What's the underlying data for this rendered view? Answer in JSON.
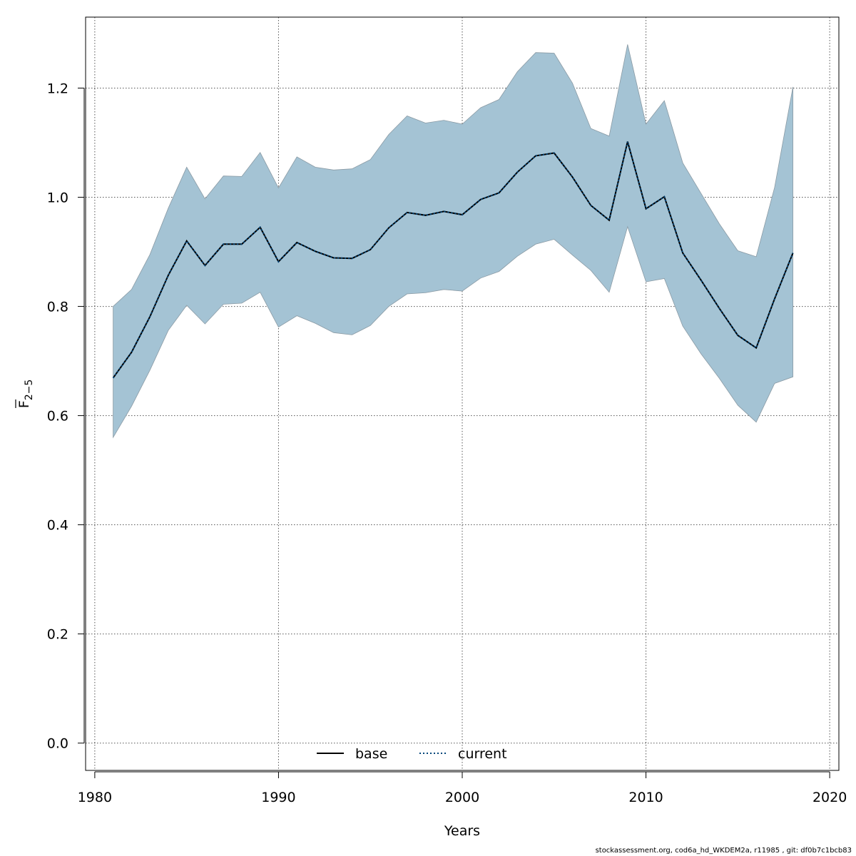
{
  "chart_data": {
    "type": "line",
    "title": "",
    "xlabel": "Years",
    "ylabel_main": "F",
    "ylabel_sub": "2−5",
    "xlim": [
      1979.5,
      2020.5
    ],
    "ylim": [
      -0.05,
      1.33
    ],
    "xticks": [
      1980,
      1990,
      2000,
      2010,
      2020
    ],
    "yticks": [
      0.0,
      0.2,
      0.4,
      0.6,
      0.8,
      1.0,
      1.2
    ],
    "xtick_labels": [
      "1980",
      "1990",
      "2000",
      "2010",
      "2020"
    ],
    "ytick_labels": [
      "0.0",
      "0.2",
      "0.4",
      "0.6",
      "0.8",
      "1.0",
      "1.2"
    ],
    "grid": true,
    "legend_position": "bottom-center",
    "band_color": "#a4c3d4",
    "band_edge_color": "#8a9aa4",
    "x": [
      1981,
      1982,
      1983,
      1984,
      1985,
      1986,
      1987,
      1988,
      1989,
      1990,
      1991,
      1992,
      1993,
      1994,
      1995,
      1996,
      1997,
      1998,
      1999,
      2000,
      2001,
      2002,
      2003,
      2004,
      2005,
      2006,
      2007,
      2008,
      2009,
      2010,
      2011,
      2012,
      2013,
      2014,
      2015,
      2016,
      2017,
      2018
    ],
    "series": [
      {
        "name": "base",
        "style": "solid",
        "color": "#000000",
        "values": [
          0.669,
          0.716,
          0.781,
          0.857,
          0.92,
          0.875,
          0.914,
          0.914,
          0.945,
          0.882,
          0.917,
          0.901,
          0.889,
          0.888,
          0.904,
          0.944,
          0.972,
          0.967,
          0.974,
          0.968,
          0.996,
          1.008,
          1.046,
          1.076,
          1.081,
          1.037,
          0.985,
          0.958,
          1.102,
          0.979,
          1.001,
          0.898,
          0.848,
          0.796,
          0.747,
          0.724,
          0.814,
          0.898
        ]
      },
      {
        "name": "current",
        "style": "dotted",
        "color": "#00467a",
        "values": [
          0.669,
          0.716,
          0.781,
          0.857,
          0.92,
          0.875,
          0.914,
          0.914,
          0.945,
          0.882,
          0.917,
          0.901,
          0.889,
          0.888,
          0.904,
          0.944,
          0.972,
          0.967,
          0.974,
          0.968,
          0.996,
          1.008,
          1.046,
          1.076,
          1.081,
          1.037,
          0.985,
          0.958,
          1.102,
          0.979,
          1.001,
          0.898,
          0.848,
          0.796,
          0.747,
          0.724,
          0.814,
          0.898
        ]
      }
    ],
    "band_lower": [
      0.56,
      0.617,
      0.683,
      0.756,
      0.802,
      0.768,
      0.804,
      0.806,
      0.826,
      0.762,
      0.783,
      0.769,
      0.752,
      0.748,
      0.765,
      0.8,
      0.823,
      0.825,
      0.831,
      0.828,
      0.852,
      0.864,
      0.892,
      0.914,
      0.923,
      0.894,
      0.866,
      0.826,
      0.946,
      0.845,
      0.851,
      0.764,
      0.713,
      0.668,
      0.619,
      0.588,
      0.659,
      0.671
    ],
    "band_upper": [
      0.8,
      0.831,
      0.895,
      0.98,
      1.055,
      0.997,
      1.039,
      1.038,
      1.082,
      1.017,
      1.074,
      1.055,
      1.05,
      1.052,
      1.069,
      1.115,
      1.149,
      1.136,
      1.141,
      1.134,
      1.164,
      1.179,
      1.23,
      1.265,
      1.264,
      1.209,
      1.126,
      1.112,
      1.28,
      1.134,
      1.177,
      1.063,
      1.007,
      0.951,
      0.902,
      0.891,
      1.018,
      1.202
    ]
  },
  "footer": "stockassessment.org, cod6a_hd_WKDEM2a, r11985 , git: df0b7c1bcb83"
}
